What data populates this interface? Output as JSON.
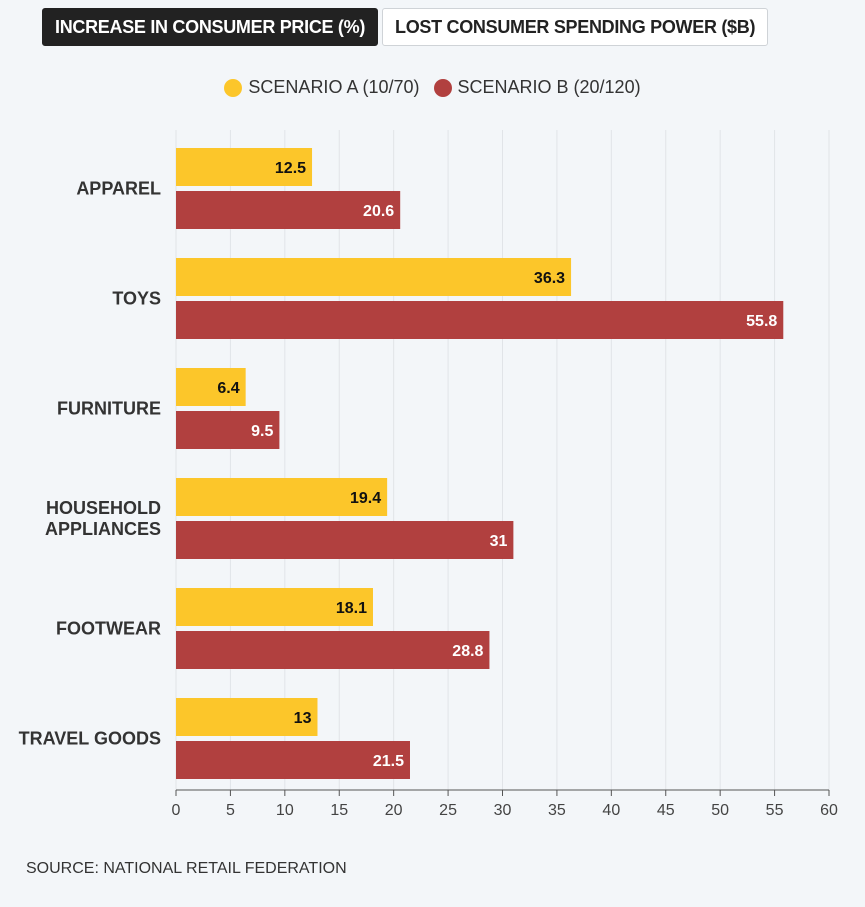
{
  "tabs": [
    {
      "label": "INCREASE IN CONSUMER PRICE (%)",
      "active": true
    },
    {
      "label": "LOST CONSUMER SPENDING POWER ($B)",
      "active": false
    }
  ],
  "source": "SOURCE: NATIONAL RETAIL FEDERATION",
  "colors": {
    "scenario_a": "#fcc62a",
    "scenario_b": "#b1403f",
    "active_tab_bg": "#222222",
    "grid": "#e1e4e8"
  },
  "chart_data": {
    "type": "bar",
    "orientation": "horizontal",
    "categories": [
      [
        "APPAREL"
      ],
      [
        "TOYS"
      ],
      [
        "FURNITURE"
      ],
      [
        "HOUSEHOLD",
        "APPLIANCES"
      ],
      [
        "FOOTWEAR"
      ],
      [
        "TRAVEL GOODS"
      ]
    ],
    "series": [
      {
        "name": "SCENARIO A (10/70)",
        "values": [
          12.5,
          36.3,
          6.4,
          19.4,
          18.1,
          13
        ],
        "labels": [
          "12.5",
          "36.3",
          "6.4",
          "19.4",
          "18.1",
          "13"
        ]
      },
      {
        "name": "SCENARIO B (20/120)",
        "values": [
          20.6,
          55.8,
          9.5,
          31,
          28.8,
          21.5
        ],
        "labels": [
          "20.6",
          "55.8",
          "9.5",
          "31",
          "28.8",
          "21.5"
        ]
      }
    ],
    "xlim": [
      0,
      60
    ],
    "xticks": [
      0,
      5,
      10,
      15,
      20,
      25,
      30,
      35,
      40,
      45,
      50,
      55,
      60
    ],
    "grid": true,
    "legend_position": "top-center"
  }
}
